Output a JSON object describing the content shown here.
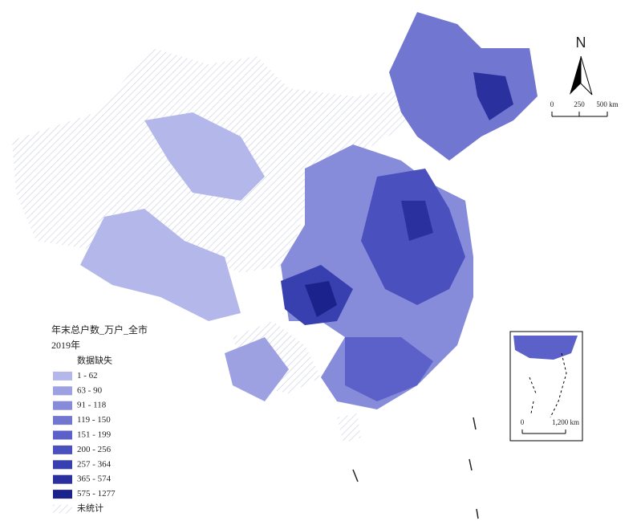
{
  "legend": {
    "title": "年末总户数_万户_全市",
    "subtitle": "2019年",
    "items": [
      {
        "label": "数据缺失",
        "color": "#ffffff"
      },
      {
        "label": "1 - 62",
        "color": "#b4b7ea"
      },
      {
        "label": "63 - 90",
        "color": "#9da1e2"
      },
      {
        "label": "91 - 118",
        "color": "#878cda"
      },
      {
        "label": "119 - 150",
        "color": "#7177d1"
      },
      {
        "label": "151 - 199",
        "color": "#5b61c8"
      },
      {
        "label": "200 - 256",
        "color": "#4a50bd"
      },
      {
        "label": "257 - 364",
        "color": "#383fae"
      },
      {
        "label": "365 - 574",
        "color": "#2a319e"
      },
      {
        "label": "575 - 1277",
        "color": "#1b228b"
      },
      {
        "label": "未统计",
        "color": "hatch"
      }
    ]
  },
  "north": "N",
  "scale_bar": {
    "labels": [
      "0",
      "250",
      "500 km"
    ]
  },
  "inset": {
    "scale_labels": [
      "0",
      "1,200 km"
    ]
  }
}
